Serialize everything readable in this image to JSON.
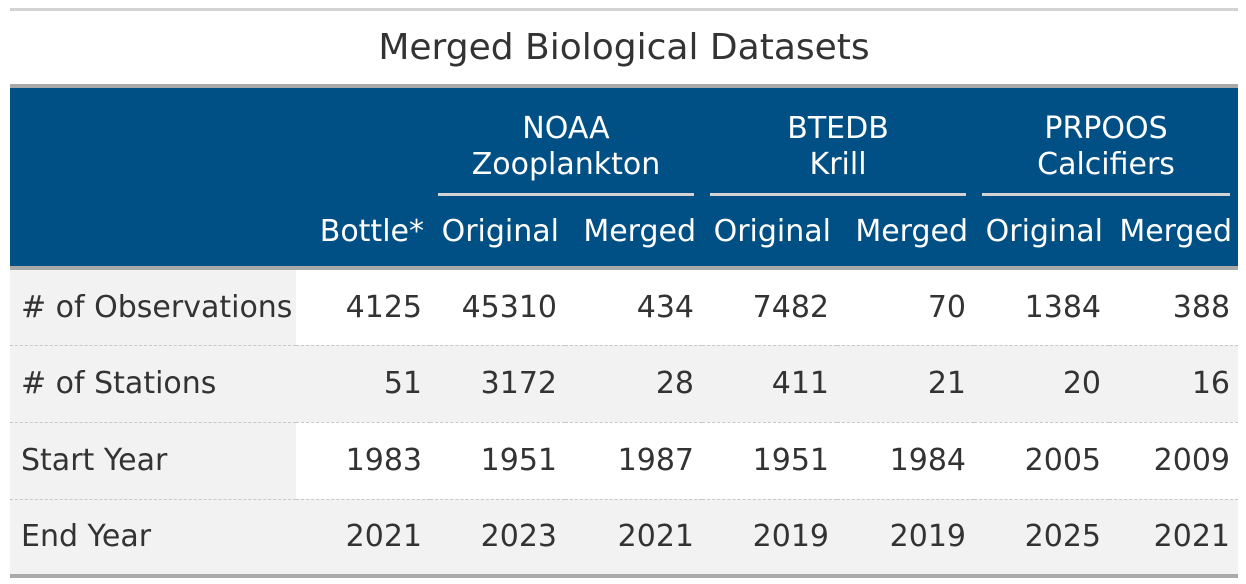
{
  "title": "Merged Biological Datasets",
  "header": {
    "spanners": [
      {
        "line1": "NOAA",
        "line2": "Zooplankton"
      },
      {
        "line1": "BTEDB",
        "line2": "Krill"
      },
      {
        "line1": "PRPOOS",
        "line2": "Calcifiers"
      }
    ],
    "columns": [
      "",
      "Bottle*",
      "Original",
      "Merged",
      "Original",
      "Merged",
      "Original",
      "Merged"
    ]
  },
  "rows": [
    {
      "label": "# of Observations",
      "values": [
        "4125",
        "45310",
        "434",
        "7482",
        "70",
        "1384",
        "388"
      ]
    },
    {
      "label": "# of Stations",
      "values": [
        "51",
        "3172",
        "28",
        "411",
        "21",
        "20",
        "16"
      ]
    },
    {
      "label": "Start Year",
      "values": [
        "1983",
        "1951",
        "1987",
        "1951",
        "1984",
        "2005",
        "2009"
      ]
    },
    {
      "label": "End Year",
      "values": [
        "2021",
        "2023",
        "2021",
        "2019",
        "2019",
        "2025",
        "2021"
      ]
    }
  ],
  "colors": {
    "header_bg": "#004f85",
    "header_text": "#ffffff",
    "stripe": "#f2f2f2",
    "rule": "#a9a9a9"
  }
}
